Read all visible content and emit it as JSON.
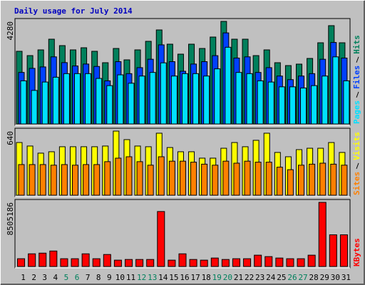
{
  "title": "Daily usage for July 2014",
  "categories": [
    "1",
    "2",
    "3",
    "4",
    "5",
    "6",
    "7",
    "8",
    "9",
    "10",
    "11",
    "12",
    "13",
    "14",
    "15",
    "16",
    "17",
    "18",
    "19",
    "20",
    "21",
    "22",
    "23",
    "24",
    "25",
    "26",
    "27",
    "28",
    "29",
    "30",
    "31"
  ],
  "category_color": "#000000",
  "highlight_categories": [
    4,
    5,
    11,
    12,
    18,
    19,
    25,
    26
  ],
  "highlight_color": "#00805c",
  "chart_data": [
    {
      "type": "bar",
      "ylim": [
        0,
        4280
      ],
      "series": [
        {
          "name": "Hits",
          "color": "#00805c",
          "values": [
            3032,
            2853,
            3091,
            3537,
            3269,
            3091,
            3180,
            3032,
            2556,
            3150,
            2675,
            3091,
            3448,
            3923,
            3329,
            2913,
            3329,
            3150,
            3626,
            4280,
            3537,
            3537,
            2853,
            3091,
            2556,
            2437,
            2497,
            2734,
            3388,
            4102,
            3388
          ]
        },
        {
          "name": "Files",
          "color": "#0040ff",
          "values": [
            2150,
            2320,
            2380,
            2800,
            2560,
            2420,
            2500,
            2400,
            1800,
            2600,
            2100,
            2350,
            2700,
            3300,
            2600,
            2200,
            2500,
            2600,
            2850,
            3800,
            2750,
            2800,
            2150,
            2350,
            2000,
            1850,
            2000,
            2100,
            2700,
            3400,
            2750
          ]
        },
        {
          "name": "Pages",
          "color": "#00e0ff",
          "values": [
            1800,
            1400,
            1750,
            1950,
            2100,
            2100,
            2100,
            1900,
            1600,
            2050,
            1700,
            2000,
            2150,
            2550,
            2000,
            2100,
            2100,
            2000,
            2300,
            3200,
            2150,
            2100,
            1800,
            1750,
            1550,
            1550,
            1500,
            1600,
            2000,
            2800,
            1800
          ]
        }
      ]
    },
    {
      "type": "bar",
      "ylim": [
        0,
        640
      ],
      "series": [
        {
          "name": "Visits",
          "color": "#ffff00",
          "values": [
            526,
            491,
            420,
            434,
            484,
            484,
            484,
            484,
            491,
            640,
            555,
            491,
            484,
            619,
            476,
            434,
            434,
            370,
            370,
            469,
            526,
            484,
            548,
            619,
            427,
            384,
            455,
            469,
            469,
            526,
            427
          ]
        },
        {
          "name": "Sites",
          "color": "#ff8000",
          "values": [
            306,
            306,
            306,
            300,
            306,
            300,
            306,
            306,
            335,
            370,
            384,
            335,
            300,
            384,
            340,
            340,
            330,
            310,
            300,
            340,
            320,
            340,
            330,
            330,
            280,
            255,
            300,
            310,
            320,
            310,
            300
          ]
        }
      ]
    },
    {
      "type": "bar",
      "ylim": [
        0,
        8505186
      ],
      "series": [
        {
          "name": "KBytes",
          "color": "#ff0000",
          "values": [
            1030000,
            1680000,
            1770000,
            2050000,
            1030000,
            1030000,
            1680000,
            1030000,
            1590000,
            840000,
            930000,
            930000,
            930000,
            7290000,
            840000,
            1680000,
            930000,
            840000,
            1120000,
            930000,
            1030000,
            1030000,
            1500000,
            1310000,
            1120000,
            1030000,
            1030000,
            1500000,
            8505186,
            4200000,
            4200000
          ]
        }
      ]
    }
  ]
}
